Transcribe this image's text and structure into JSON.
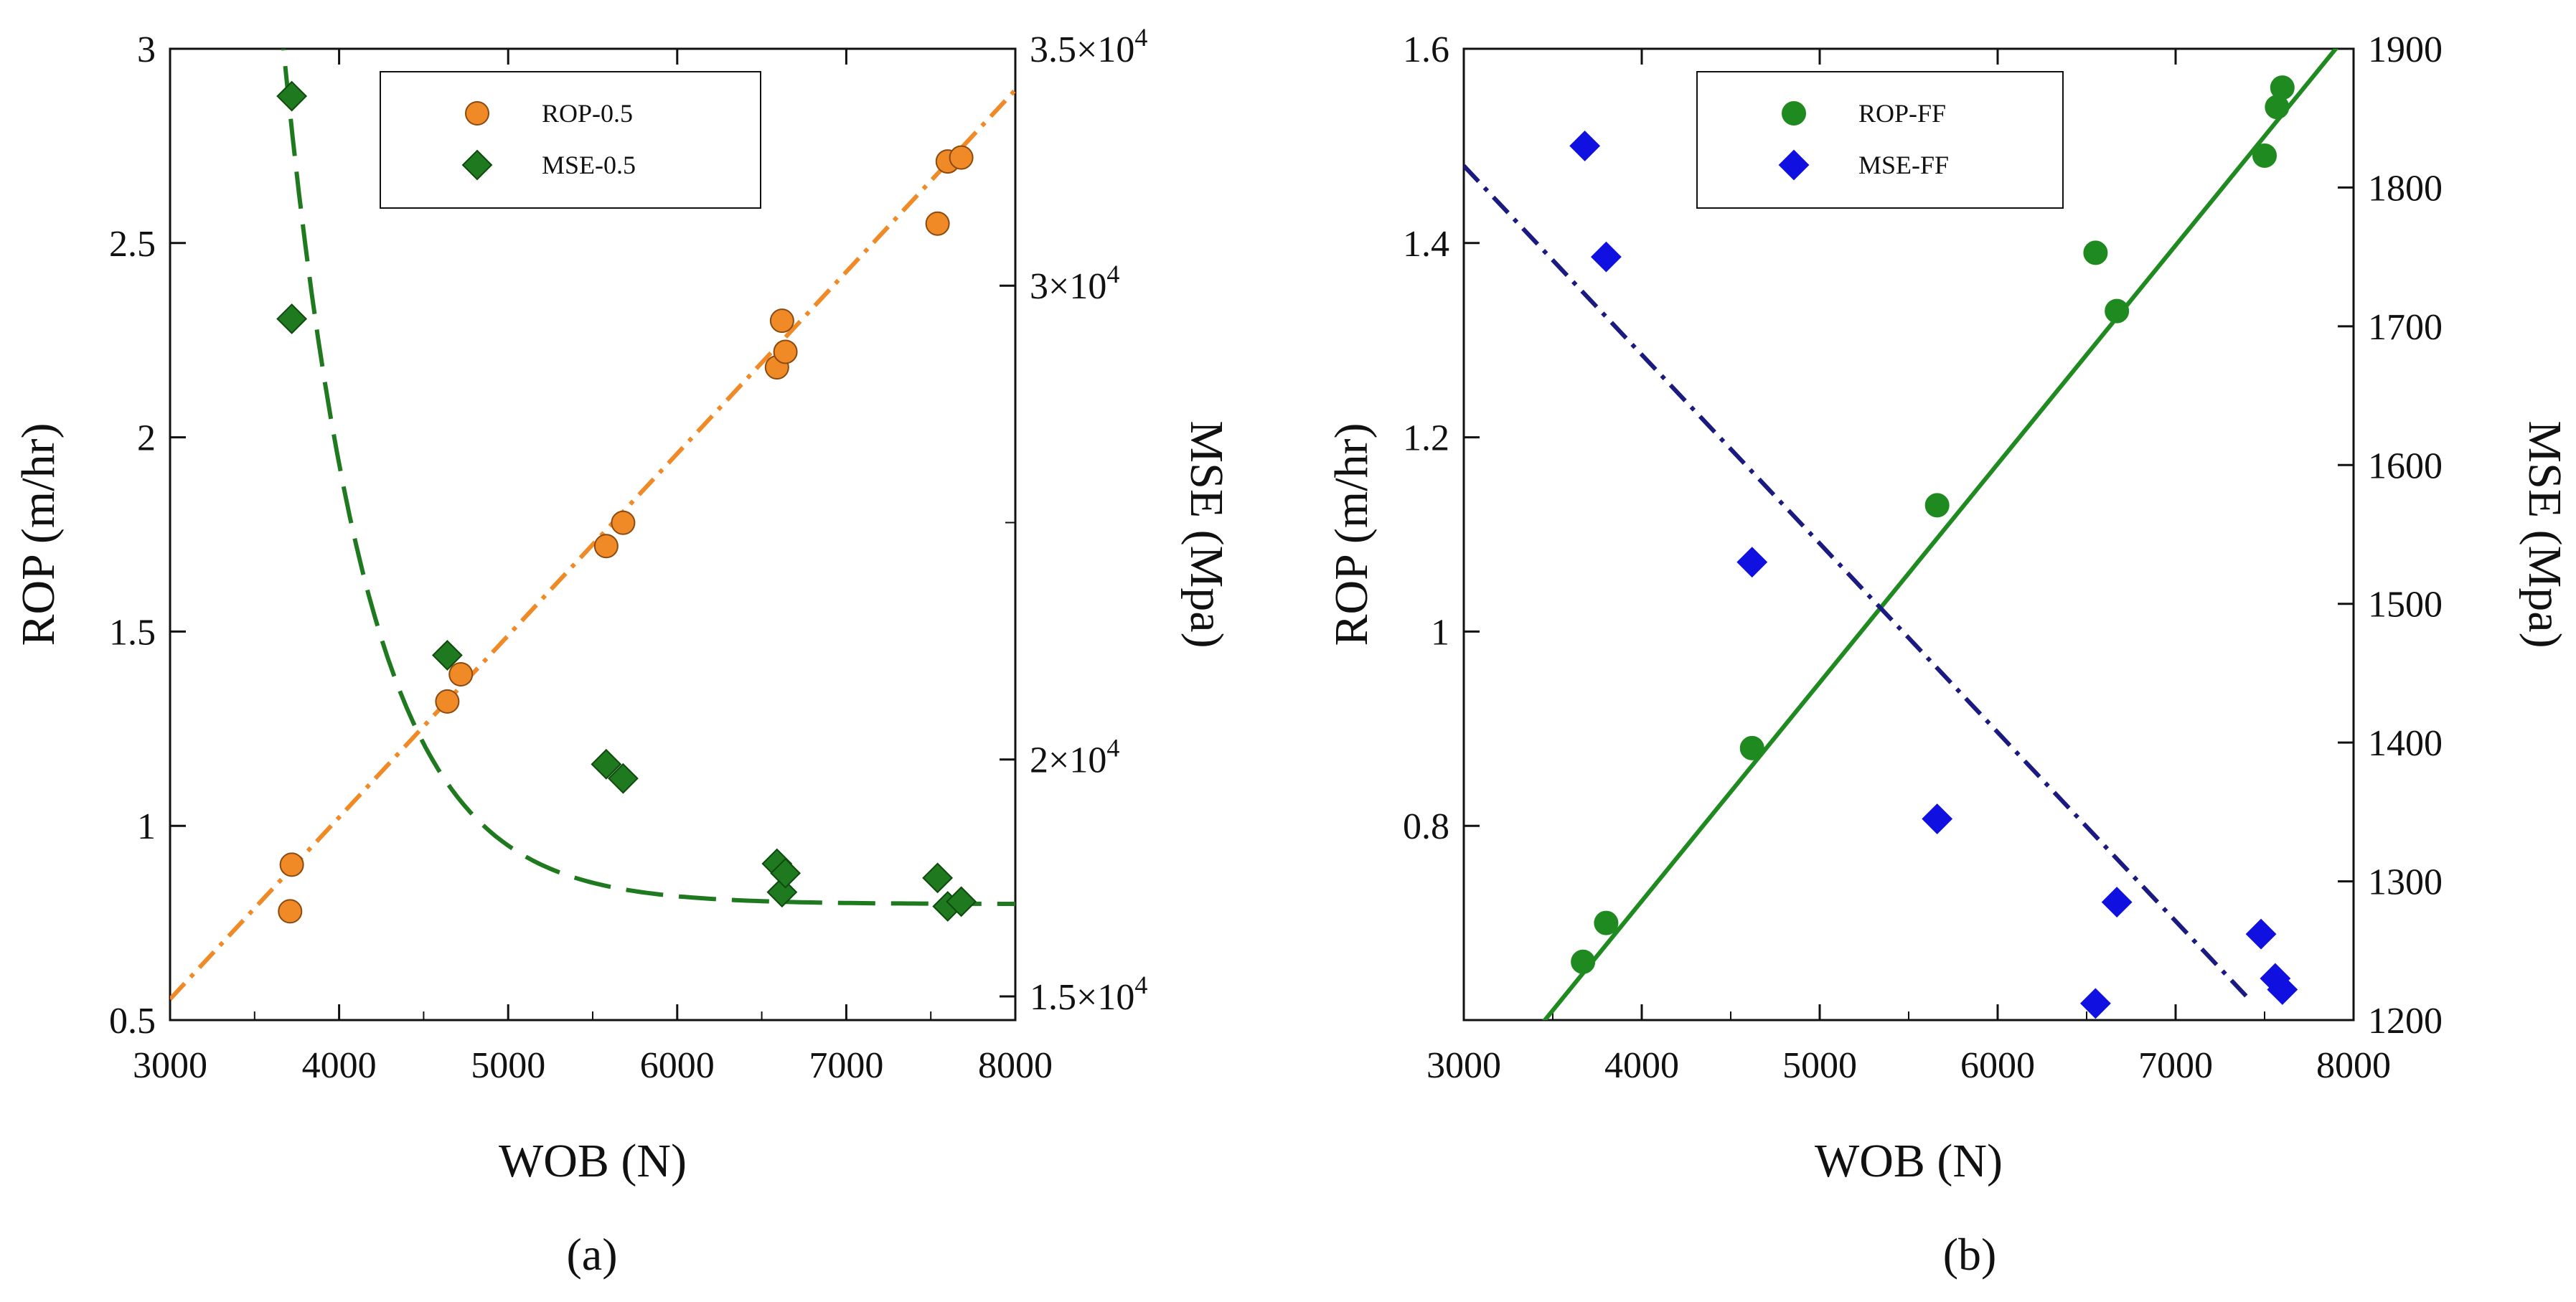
{
  "chart_data": [
    {
      "type": "scatter",
      "caption": "(a)",
      "title": "",
      "xlabel": "WOB (N)",
      "ylabel": "ROP (m/hr)",
      "y2label": "MSE (Mpa)",
      "xlim": [
        3000,
        8000
      ],
      "ylim": [
        0.5,
        3
      ],
      "y2lim": [
        14500,
        35000
      ],
      "x_ticks": [
        "3000",
        "4000",
        "5000",
        "6000",
        "7000",
        "8000"
      ],
      "y_ticks": [
        "0.5",
        "1",
        "1.5",
        "2",
        "2.5",
        "3"
      ],
      "y2_ticks": [
        {
          "value": 15000,
          "mantissa": "1.5",
          "exponent": "4"
        },
        {
          "value": 20000,
          "mantissa": "2",
          "exponent": "4"
        },
        {
          "value": 30000,
          "mantissa": "3",
          "exponent": "4"
        },
        {
          "value": 35000,
          "mantissa": "3.5",
          "exponent": "4"
        }
      ],
      "legend_position": "top-center",
      "series": [
        {
          "name": "ROP-0.5",
          "axis": "left",
          "marker": "circle",
          "color": "#f08a26",
          "edge": "#8a4a10",
          "x": [
            3720,
            3710,
            4640,
            4720,
            5580,
            5680,
            6590,
            6620,
            6640,
            7540,
            7600,
            7680
          ],
          "y": [
            0.9,
            0.78,
            1.32,
            1.39,
            1.72,
            1.78,
            2.18,
            2.3,
            2.22,
            2.55,
            2.71,
            2.72
          ]
        },
        {
          "name": "MSE-0.5",
          "axis": "right",
          "marker": "diamond",
          "color": "#1f7a1f",
          "edge": "#0e4a0e",
          "x": [
            3720,
            3720,
            4640,
            5580,
            5680,
            6590,
            6620,
            6640,
            7540,
            7600,
            7680
          ],
          "y": [
            34000,
            29300,
            22200,
            19900,
            19600,
            17800,
            17200,
            17600,
            17500,
            16900,
            17000
          ]
        }
      ],
      "fit_lines": [
        {
          "series": "ROP-0.5",
          "axis": "left",
          "style": "dash-dot",
          "color": "#f08a26",
          "model": "linear",
          "slope": 0.000468,
          "intercept": -0.85
        },
        {
          "series": "MSE-0.5",
          "axis": "right",
          "style": "dashed",
          "color": "#1f7a1f",
          "model": "exponential-decay",
          "asymptote": 16950,
          "amplitude": 25500,
          "decay_per_N": 0.00202,
          "x0": 3500,
          "x_start": 3500
        }
      ]
    },
    {
      "type": "scatter",
      "caption": "(b)",
      "title": "",
      "xlabel": "WOB (N)",
      "ylabel": "ROP (m/hr)",
      "y2label": "MSE (Mpa)",
      "xlim": [
        3000,
        8000
      ],
      "ylim": [
        0.6,
        1.6
      ],
      "y2lim": [
        1200,
        1900
      ],
      "x_ticks": [
        "3000",
        "4000",
        "5000",
        "6000",
        "7000",
        "8000"
      ],
      "y_ticks": [
        "0.8",
        "1",
        "1.2",
        "1.4",
        "1.6"
      ],
      "y2_ticks": [
        "1200",
        "1300",
        "1400",
        "1500",
        "1600",
        "1700",
        "1800",
        "1900"
      ],
      "legend_position": "top-center",
      "series": [
        {
          "name": "ROP-FF",
          "axis": "left",
          "marker": "circle",
          "color": "#1f8a1f",
          "edge": "#1f8a1f",
          "x": [
            3670,
            3800,
            4620,
            5660,
            6550,
            6670,
            7500,
            7570,
            7600
          ],
          "y": [
            0.66,
            0.7,
            0.88,
            1.13,
            1.39,
            1.33,
            1.49,
            1.54,
            1.56
          ]
        },
        {
          "name": "MSE-FF",
          "axis": "right",
          "marker": "diamond",
          "color": "#1010e0",
          "edge": "#1010e0",
          "x": [
            3680,
            3800,
            4620,
            5660,
            6550,
            6670,
            7480,
            7560,
            7600
          ],
          "y": [
            1830,
            1750,
            1530,
            1345,
            1212,
            1285,
            1262,
            1230,
            1222
          ]
        }
      ],
      "fit_lines": [
        {
          "series": "ROP-FF",
          "axis": "left",
          "style": "solid",
          "color": "#1f8a1f",
          "model": "linear",
          "slope": 0.000225,
          "intercept": -0.1775
        },
        {
          "series": "MSE-FF",
          "axis": "right",
          "style": "dash-dot",
          "color": "#1a1a80",
          "model": "linear",
          "slope": -0.1361,
          "intercept": 2224,
          "x_end": 7400
        }
      ]
    }
  ]
}
